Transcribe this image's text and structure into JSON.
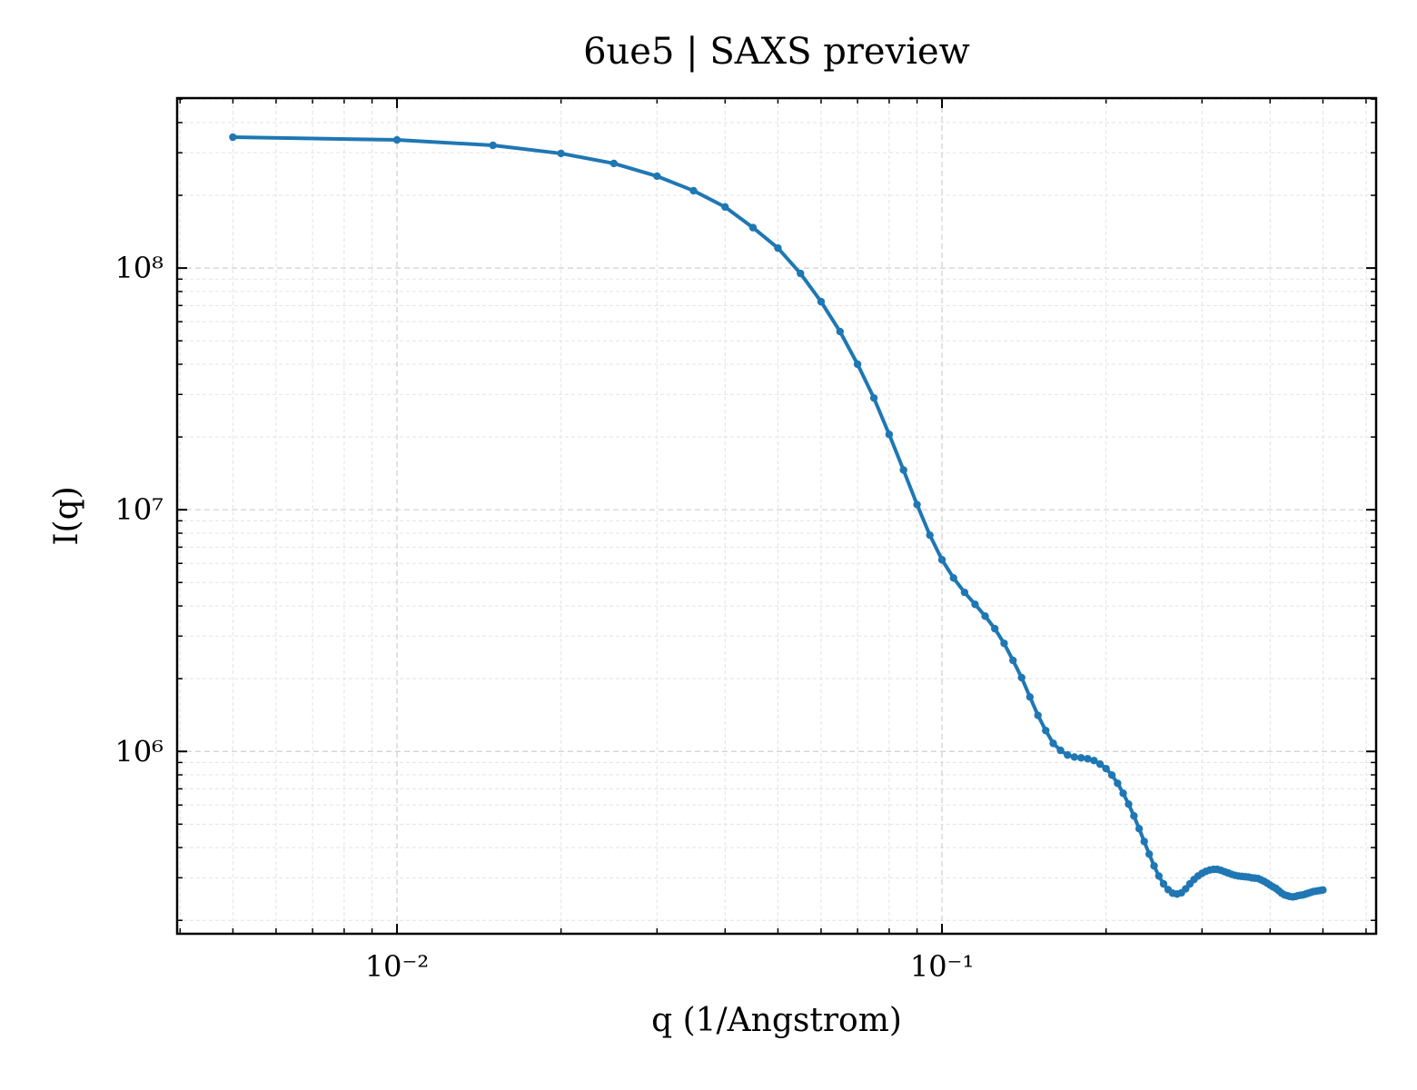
{
  "chart_data": {
    "type": "line",
    "title": "6ue5 | SAXS preview",
    "x_label": "q (1/Angstrom)",
    "y_label": "I(q)",
    "xscale": "log",
    "yscale": "log",
    "grid": true,
    "xlim": [
      0.00395,
      0.626
    ],
    "ylim": [
      176000,
      505000000
    ],
    "xticks": [
      {
        "value": 0.01,
        "label": "10⁻²"
      },
      {
        "value": 0.1,
        "label": "10⁻¹"
      }
    ],
    "yticks": [
      {
        "value": 1000000,
        "label": "10⁶"
      },
      {
        "value": 10000000,
        "label": "10⁷"
      },
      {
        "value": 100000000,
        "label": "10⁸"
      }
    ],
    "x": [
      0.005,
      0.01,
      0.015,
      0.02,
      0.025,
      0.03,
      0.035,
      0.04,
      0.045,
      0.05,
      0.055,
      0.06,
      0.065,
      0.07,
      0.075,
      0.08,
      0.085,
      0.09,
      0.095,
      0.1,
      0.105,
      0.11,
      0.115,
      0.12,
      0.125,
      0.13,
      0.135,
      0.14,
      0.145,
      0.15,
      0.155,
      0.16,
      0.165,
      0.17,
      0.175,
      0.18,
      0.185,
      0.19,
      0.195,
      0.2,
      0.205,
      0.21,
      0.215,
      0.22,
      0.225,
      0.23,
      0.235,
      0.24,
      0.245,
      0.25,
      0.255,
      0.26,
      0.265,
      0.27,
      0.275,
      0.28,
      0.285,
      0.29,
      0.295,
      0.3,
      0.305,
      0.31,
      0.315,
      0.32,
      0.325,
      0.33,
      0.335,
      0.34,
      0.345,
      0.35,
      0.355,
      0.36,
      0.365,
      0.37,
      0.375,
      0.38,
      0.385,
      0.39,
      0.395,
      0.4,
      0.405,
      0.41,
      0.415,
      0.42,
      0.425,
      0.43,
      0.435,
      0.44,
      0.445,
      0.45,
      0.455,
      0.46,
      0.465,
      0.47,
      0.475,
      0.48,
      0.485,
      0.49,
      0.495,
      0.5
    ],
    "series": [
      {
        "color": "#1f77b4",
        "values": [
          348000000.0,
          339000000.0,
          322000000.0,
          298000000.0,
          271000000.0,
          240000000.0,
          209000000.0,
          179000000.0,
          147000000.0,
          121000000.0,
          95000000.0,
          72600000.0,
          54600000.0,
          40000000.0,
          29000000.0,
          20500000.0,
          14600000.0,
          10500000.0,
          7850000.0,
          6210000.0,
          5220000.0,
          4550000.0,
          4060000.0,
          3630000.0,
          3220000.0,
          2800000.0,
          2380000.0,
          2020000.0,
          1680000.0,
          1410000.0,
          1220000.0,
          1080000.0,
          1010000.0,
          966000.0,
          948000.0,
          941000.0,
          933000.0,
          917000.0,
          886000.0,
          849000.0,
          798000.0,
          738000.0,
          671000.0,
          605000.0,
          541000.0,
          479000.0,
          424000.0,
          376000.0,
          336000.0,
          305000.0,
          283000.0,
          268000.0,
          259000.0,
          257000.0,
          260000.0,
          270000.0,
          283000.0,
          295000.0,
          305000.0,
          313000.0,
          319000.0,
          323000.0,
          325000.0,
          325000.0,
          322000.0,
          318000.0,
          314000.0,
          310000.0,
          307000.0,
          305000.0,
          304000.0,
          303000.0,
          302000.0,
          300000.0,
          299000.0,
          298000.0,
          294000.0,
          290000.0,
          285000.0,
          280000.0,
          275000.0,
          271000.0,
          265000.0,
          259000.0,
          255000.0,
          253000.0,
          251000.0,
          250000.0,
          251000.0,
          253000.0,
          254000.0,
          255000.0,
          257000.0,
          259000.0,
          261000.0,
          263000.0,
          264000.0,
          265000.0,
          266000.0,
          267000.0
        ]
      }
    ]
  }
}
